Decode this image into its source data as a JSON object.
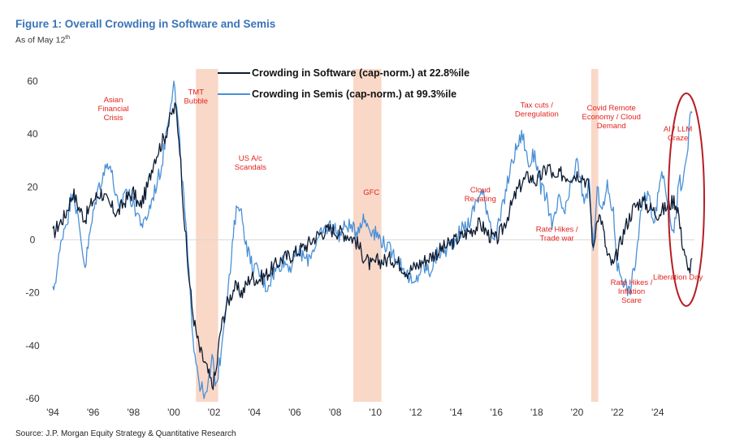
{
  "title": "Figure 1: Overall Crowding in Software and Semis",
  "subtitle_main": "As of May 12",
  "subtitle_sup": "th",
  "source": "Source: J.P. Morgan Equity Strategy & Quantitative Research",
  "colors": {
    "software": "#0d1b33",
    "semis": "#4a90d6",
    "shade": "#f9d8c8",
    "annotation": "#e3231f",
    "ellipse": "#b51e24"
  },
  "chart_data": {
    "type": "line",
    "title": "Figure 1: Overall Crowding in Software and Semis",
    "xlabel": "",
    "ylabel": "",
    "xlim": [
      1994.0,
      2025.7
    ],
    "ylim": [
      -60,
      60
    ],
    "x_ticks": [
      {
        "value": 1994,
        "label": "'94"
      },
      {
        "value": 1996,
        "label": "'96"
      },
      {
        "value": 1998,
        "label": "'98"
      },
      {
        "value": 2000,
        "label": "'00"
      },
      {
        "value": 2002,
        "label": "'02"
      },
      {
        "value": 2004,
        "label": "'04"
      },
      {
        "value": 2006,
        "label": "'06"
      },
      {
        "value": 2008,
        "label": "'08"
      },
      {
        "value": 2010,
        "label": "'10"
      },
      {
        "value": 2012,
        "label": "'12"
      },
      {
        "value": 2014,
        "label": "'14"
      },
      {
        "value": 2016,
        "label": "'16"
      },
      {
        "value": 2018,
        "label": "'18"
      },
      {
        "value": 2020,
        "label": "'20"
      },
      {
        "value": 2022,
        "label": "'22"
      },
      {
        "value": 2024,
        "label": "'24"
      }
    ],
    "y_ticks": [
      {
        "value": 60,
        "label": "60"
      },
      {
        "value": 40,
        "label": "40"
      },
      {
        "value": 20,
        "label": "20"
      },
      {
        "value": 0,
        "label": "0"
      },
      {
        "value": -20,
        "label": "-20"
      },
      {
        "value": -40,
        "label": "-40"
      },
      {
        "value": -60,
        "label": "-60"
      }
    ],
    "shaded_periods": [
      {
        "label": "TMT Bubble",
        "start": 2001.1,
        "end": 2002.2
      },
      {
        "label": "GFC",
        "start": 2008.9,
        "end": 2010.3
      },
      {
        "label": "Covid",
        "start": 2020.7,
        "end": 2021.05
      }
    ],
    "series": [
      {
        "name": "Crowding in Software (cap-norm.) at 22.8%ile",
        "legend_label": "Crowding in Software (cap-norm.) at 22.8%ile",
        "points": [
          [
            1994.0,
            2
          ],
          [
            1994.3,
            6
          ],
          [
            1994.6,
            9
          ],
          [
            1995.0,
            18
          ],
          [
            1995.3,
            12
          ],
          [
            1995.6,
            8
          ],
          [
            1996.0,
            15
          ],
          [
            1996.4,
            18
          ],
          [
            1996.8,
            13
          ],
          [
            1997.2,
            10
          ],
          [
            1997.6,
            15
          ],
          [
            1998.0,
            18
          ],
          [
            1998.3,
            12
          ],
          [
            1998.7,
            20
          ],
          [
            1999.0,
            30
          ],
          [
            1999.3,
            35
          ],
          [
            1999.6,
            40
          ],
          [
            1999.9,
            48
          ],
          [
            2000.1,
            50
          ],
          [
            2000.3,
            35
          ],
          [
            2000.5,
            10
          ],
          [
            2000.7,
            -10
          ],
          [
            2000.9,
            -25
          ],
          [
            2001.1,
            -35
          ],
          [
            2001.3,
            -42
          ],
          [
            2001.6,
            -48
          ],
          [
            2001.9,
            -55
          ],
          [
            2002.1,
            -50
          ],
          [
            2002.3,
            -35
          ],
          [
            2002.6,
            -25
          ],
          [
            2003.0,
            -18
          ],
          [
            2003.4,
            -20
          ],
          [
            2003.8,
            -14
          ],
          [
            2004.2,
            -15
          ],
          [
            2004.6,
            -13
          ],
          [
            2005.0,
            -10
          ],
          [
            2005.4,
            -7
          ],
          [
            2005.8,
            -6
          ],
          [
            2006.2,
            -4
          ],
          [
            2006.6,
            -2
          ],
          [
            2007.0,
            1
          ],
          [
            2007.4,
            3
          ],
          [
            2007.8,
            4
          ],
          [
            2008.2,
            3
          ],
          [
            2008.6,
            2
          ],
          [
            2009.0,
            0
          ],
          [
            2009.4,
            -6
          ],
          [
            2009.8,
            -10
          ],
          [
            2010.1,
            -8
          ],
          [
            2010.4,
            -8
          ],
          [
            2010.8,
            -7
          ],
          [
            2011.2,
            -9
          ],
          [
            2011.6,
            -12
          ],
          [
            2012.0,
            -10
          ],
          [
            2012.4,
            -8
          ],
          [
            2012.8,
            -6
          ],
          [
            2013.2,
            -4
          ],
          [
            2013.6,
            -2
          ],
          [
            2014.0,
            0
          ],
          [
            2014.4,
            2
          ],
          [
            2014.8,
            4
          ],
          [
            2015.2,
            6
          ],
          [
            2015.6,
            2
          ],
          [
            2016.0,
            0
          ],
          [
            2016.3,
            4
          ],
          [
            2016.6,
            10
          ],
          [
            2017.0,
            18
          ],
          [
            2017.3,
            22
          ],
          [
            2017.6,
            24
          ],
          [
            2018.0,
            22
          ],
          [
            2018.3,
            25
          ],
          [
            2018.6,
            28
          ],
          [
            2018.9,
            22
          ],
          [
            2019.2,
            25
          ],
          [
            2019.6,
            24
          ],
          [
            2020.0,
            25
          ],
          [
            2020.3,
            24
          ],
          [
            2020.6,
            20
          ],
          [
            2020.8,
            -5
          ],
          [
            2021.0,
            10
          ],
          [
            2021.2,
            8
          ],
          [
            2021.5,
            -6
          ],
          [
            2021.8,
            -10
          ],
          [
            2022.0,
            -5
          ],
          [
            2022.4,
            5
          ],
          [
            2022.8,
            12
          ],
          [
            2023.2,
            15
          ],
          [
            2023.6,
            12
          ],
          [
            2024.0,
            10
          ],
          [
            2024.4,
            12
          ],
          [
            2024.8,
            15
          ],
          [
            2025.0,
            12
          ],
          [
            2025.1,
            5
          ],
          [
            2025.2,
            0
          ],
          [
            2025.35,
            -5
          ],
          [
            2025.5,
            -13
          ],
          [
            2025.6,
            -10
          ],
          [
            2025.7,
            -7
          ]
        ]
      },
      {
        "name": "Crowding in Semis (cap-norm.) at 99.3%ile",
        "legend_label": "Crowding in Semis (cap-norm.) at 99.3%ile",
        "points": [
          [
            1994.0,
            -20
          ],
          [
            1994.2,
            -12
          ],
          [
            1994.5,
            3
          ],
          [
            1994.8,
            10
          ],
          [
            1995.0,
            20
          ],
          [
            1995.3,
            5
          ],
          [
            1995.6,
            -10
          ],
          [
            1995.9,
            5
          ],
          [
            1996.2,
            18
          ],
          [
            1996.5,
            25
          ],
          [
            1996.8,
            30
          ],
          [
            1997.0,
            22
          ],
          [
            1997.3,
            10
          ],
          [
            1997.6,
            20
          ],
          [
            1997.9,
            15
          ],
          [
            1998.2,
            10
          ],
          [
            1998.5,
            5
          ],
          [
            1998.8,
            12
          ],
          [
            1999.1,
            20
          ],
          [
            1999.4,
            28
          ],
          [
            1999.7,
            45
          ],
          [
            1999.9,
            55
          ],
          [
            2000.0,
            60
          ],
          [
            2000.2,
            45
          ],
          [
            2000.4,
            25
          ],
          [
            2000.6,
            5
          ],
          [
            2000.8,
            -20
          ],
          [
            2001.0,
            -40
          ],
          [
            2001.3,
            -55
          ],
          [
            2001.6,
            -60
          ],
          [
            2001.9,
            -45
          ],
          [
            2002.1,
            -55
          ],
          [
            2002.3,
            -45
          ],
          [
            2002.5,
            -30
          ],
          [
            2002.8,
            -12
          ],
          [
            2003.0,
            5
          ],
          [
            2003.2,
            15
          ],
          [
            2003.4,
            8
          ],
          [
            2003.6,
            -2
          ],
          [
            2003.9,
            -10
          ],
          [
            2004.2,
            -12
          ],
          [
            2004.6,
            -18
          ],
          [
            2005.0,
            -12
          ],
          [
            2005.4,
            -8
          ],
          [
            2005.8,
            -10
          ],
          [
            2006.2,
            -4
          ],
          [
            2006.6,
            -8
          ],
          [
            2007.0,
            -2
          ],
          [
            2007.4,
            3
          ],
          [
            2007.8,
            6
          ],
          [
            2008.2,
            2
          ],
          [
            2008.6,
            6
          ],
          [
            2009.0,
            3
          ],
          [
            2009.4,
            8
          ],
          [
            2009.8,
            4
          ],
          [
            2010.2,
            1
          ],
          [
            2010.6,
            -3
          ],
          [
            2011.0,
            -6
          ],
          [
            2011.5,
            -12
          ],
          [
            2011.9,
            -18
          ],
          [
            2012.3,
            -10
          ],
          [
            2012.7,
            -12
          ],
          [
            2013.1,
            -5
          ],
          [
            2013.5,
            -4
          ],
          [
            2013.9,
            0
          ],
          [
            2014.3,
            4
          ],
          [
            2014.7,
            7
          ],
          [
            2015.0,
            15
          ],
          [
            2015.3,
            18
          ],
          [
            2015.6,
            10
          ],
          [
            2015.9,
            0
          ],
          [
            2016.2,
            8
          ],
          [
            2016.5,
            20
          ],
          [
            2016.8,
            30
          ],
          [
            2017.0,
            35
          ],
          [
            2017.3,
            40
          ],
          [
            2017.6,
            28
          ],
          [
            2017.9,
            33
          ],
          [
            2018.2,
            20
          ],
          [
            2018.5,
            15
          ],
          [
            2018.8,
            5
          ],
          [
            2019.1,
            15
          ],
          [
            2019.4,
            10
          ],
          [
            2019.7,
            20
          ],
          [
            2020.0,
            30
          ],
          [
            2020.3,
            15
          ],
          [
            2020.6,
            20
          ],
          [
            2020.8,
            -3
          ],
          [
            2021.0,
            18
          ],
          [
            2021.3,
            12
          ],
          [
            2021.5,
            20
          ],
          [
            2021.8,
            10
          ],
          [
            2022.0,
            -10
          ],
          [
            2022.3,
            -15
          ],
          [
            2022.6,
            -20
          ],
          [
            2022.9,
            -8
          ],
          [
            2023.2,
            12
          ],
          [
            2023.5,
            18
          ],
          [
            2023.8,
            8
          ],
          [
            2024.0,
            15
          ],
          [
            2024.2,
            27
          ],
          [
            2024.4,
            20
          ],
          [
            2024.6,
            10
          ],
          [
            2024.8,
            2
          ],
          [
            2025.0,
            18
          ],
          [
            2025.1,
            22
          ],
          [
            2025.2,
            18
          ],
          [
            2025.35,
            28
          ],
          [
            2025.5,
            35
          ],
          [
            2025.6,
            45
          ],
          [
            2025.7,
            48
          ]
        ]
      }
    ],
    "annotations": [
      {
        "lines": [
          "Asian",
          "Financial",
          "Crisis"
        ],
        "x": 1997.0,
        "y": 52
      },
      {
        "lines": [
          "TMT",
          "Bubble"
        ],
        "x": 2001.1,
        "y": 55
      },
      {
        "lines": [
          "US A/c",
          "Scandals"
        ],
        "x": 2003.8,
        "y": 30
      },
      {
        "lines": [
          "GFC"
        ],
        "x": 2009.8,
        "y": 17
      },
      {
        "lines": [
          "Cloud",
          "Re-rating"
        ],
        "x": 2015.2,
        "y": 18
      },
      {
        "lines": [
          "Tax cuts /",
          "Deregulation"
        ],
        "x": 2018.0,
        "y": 50
      },
      {
        "lines": [
          "Rate Hikes /",
          "Trade war"
        ],
        "x": 2019.0,
        "y": 3
      },
      {
        "lines": [
          "Covid Remote",
          "Economy / Cloud",
          "Demand"
        ],
        "x": 2021.7,
        "y": 49
      },
      {
        "lines": [
          "AI / LLM",
          "Craze"
        ],
        "x": 2025.0,
        "y": 41
      },
      {
        "lines": [
          "Rate Hikes /",
          "Inflation",
          "Scare"
        ],
        "x": 2022.7,
        "y": -17
      },
      {
        "lines": [
          "Liberation Day"
        ],
        "x": 2025.0,
        "y": -15
      }
    ],
    "legend_placement": "top-center",
    "grid": false
  }
}
